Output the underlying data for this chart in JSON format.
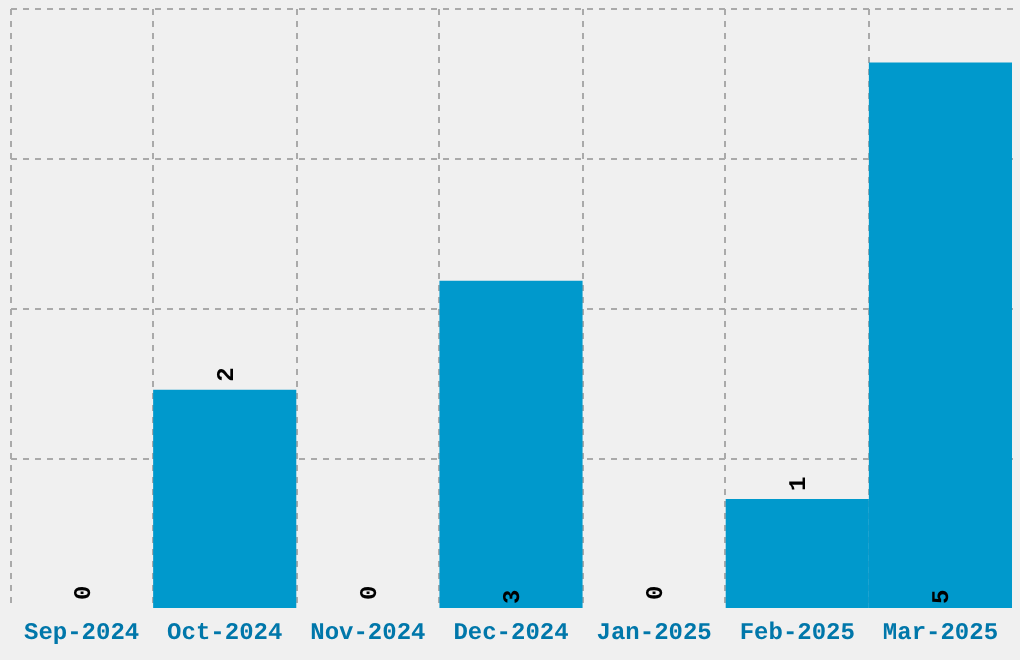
{
  "chart_data": {
    "type": "bar",
    "categories": [
      "Sep-2024",
      "Oct-2024",
      "Nov-2024",
      "Dec-2024",
      "Jan-2025",
      "Feb-2025",
      "Mar-2025"
    ],
    "values": [
      0,
      2,
      0,
      3,
      0,
      1,
      5
    ],
    "color": "#0099cc",
    "ylim": [
      0,
      5.5
    ],
    "yticks": [
      {
        "value": 1.375,
        "label": null
      },
      {
        "value": 2.75,
        "label": null
      },
      {
        "value": 4.125,
        "label": null
      },
      {
        "value": 5.5,
        "label": null
      }
    ],
    "grid": true,
    "data_labels": true,
    "tick_labels": "x"
  }
}
